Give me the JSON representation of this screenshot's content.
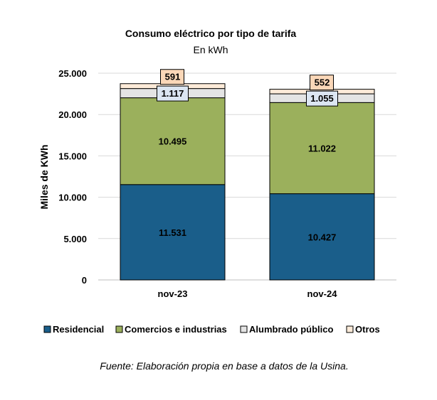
{
  "chart_data": {
    "type": "bar",
    "stacked": true,
    "title": "Consumo eléctrico por tipo de tarifa",
    "subtitle": "En kWh",
    "xlabel": "",
    "ylabel": "Miles de KWh",
    "ylim": [
      0,
      25000
    ],
    "yticks": [
      0,
      5000,
      10000,
      15000,
      20000,
      25000
    ],
    "ytick_labels": [
      "0",
      "5.000",
      "10.000",
      "15.000",
      "20.000",
      "25.000"
    ],
    "grid": true,
    "legend": "bottom",
    "categories": [
      "nov-23",
      "nov-24"
    ],
    "series": [
      {
        "name": "Residencial",
        "values": [
          11531,
          10427
        ],
        "labels": [
          "11.531",
          "10.427"
        ],
        "color": "#1a5e8a"
      },
      {
        "name": "Comercios e industrias",
        "values": [
          10495,
          11022
        ],
        "labels": [
          "10.495",
          "11.022"
        ],
        "color": "#9bb05c"
      },
      {
        "name": "Alumbrado público",
        "values": [
          1117,
          1055
        ],
        "labels": [
          "1.117",
          "1.055"
        ],
        "color": "#e4e4e4"
      },
      {
        "name": "Otros",
        "values": [
          591,
          552
        ],
        "labels": [
          "591",
          "552"
        ],
        "color": "#fdebd9"
      }
    ],
    "source": "Fuente: Elaboración propia en base a datos de la Usina."
  }
}
